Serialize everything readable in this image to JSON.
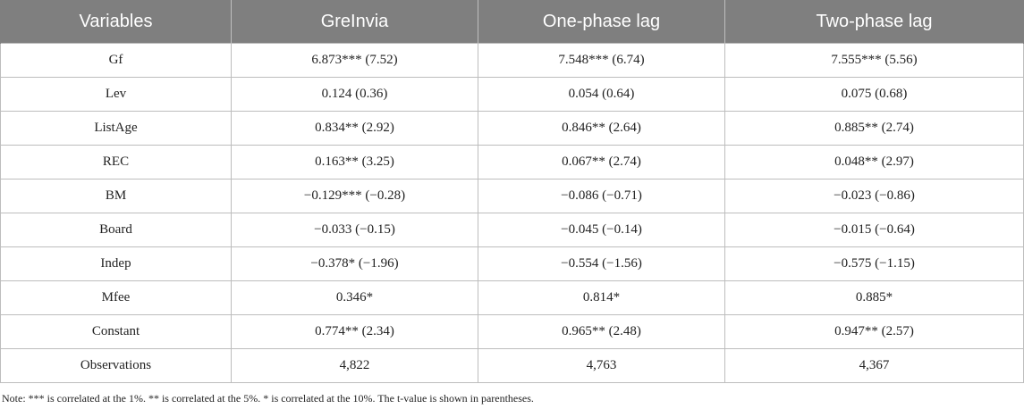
{
  "table": {
    "headers": [
      "Variables",
      "GreInvia",
      "One-phase lag",
      "Two-phase lag"
    ],
    "rows": [
      [
        "Gf",
        "6.873*** (7.52)",
        "7.548*** (6.74)",
        "7.555*** (5.56)"
      ],
      [
        "Lev",
        "0.124 (0.36)",
        "0.054 (0.64)",
        "0.075 (0.68)"
      ],
      [
        "ListAge",
        "0.834** (2.92)",
        "0.846** (2.64)",
        "0.885** (2.74)"
      ],
      [
        "REC",
        "0.163** (3.25)",
        "0.067** (2.74)",
        "0.048** (2.97)"
      ],
      [
        "BM",
        "−0.129*** (−0.28)",
        "−0.086 (−0.71)",
        "−0.023 (−0.86)"
      ],
      [
        "Board",
        "−0.033 (−0.15)",
        "−0.045 (−0.14)",
        "−0.015 (−0.64)"
      ],
      [
        "Indep",
        "−0.378* (−1.96)",
        "−0.554 (−1.56)",
        "−0.575 (−1.15)"
      ],
      [
        "Mfee",
        "0.346*",
        "0.814*",
        "0.885*"
      ],
      [
        "Constant",
        "0.774** (2.34)",
        "0.965** (2.48)",
        "0.947** (2.57)"
      ],
      [
        "Observations",
        "4,822",
        "4,763",
        "4,367"
      ]
    ]
  },
  "note": "Note: *** is correlated at the 1%. ** is correlated at the 5%. * is correlated at the 10%. The t-value is shown in parentheses.",
  "colors": {
    "header_bg": "#7f7f7f",
    "header_text": "#ffffff",
    "grid": "#bdbdbd",
    "text": "#222222"
  }
}
